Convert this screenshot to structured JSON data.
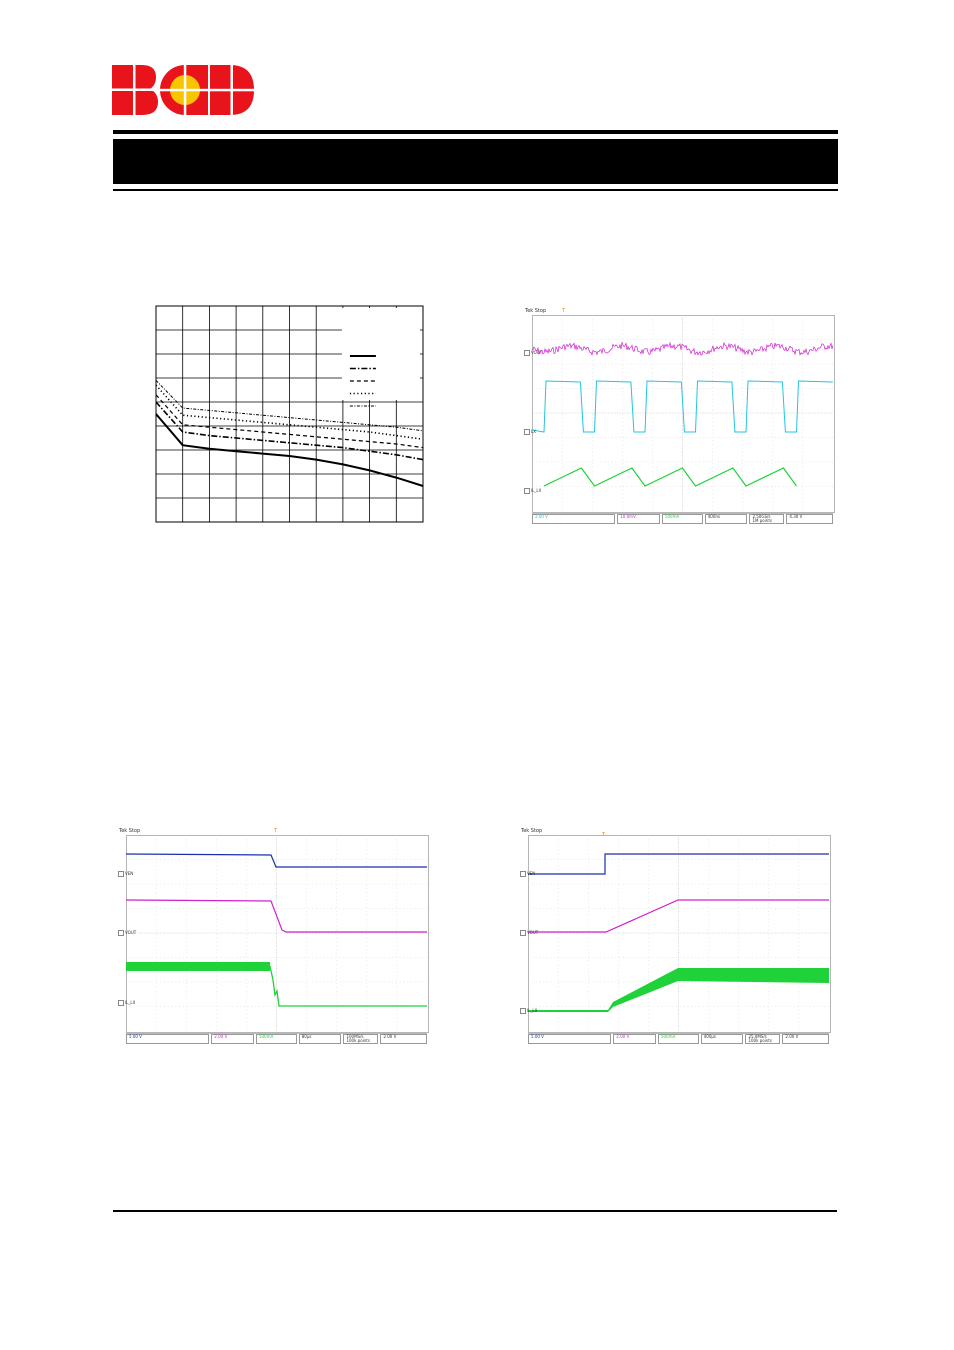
{
  "logo": {
    "text": "BCD",
    "colors": {
      "letters": "#e8131b",
      "dot": "#f9c300"
    }
  },
  "header": {
    "title": ""
  },
  "figure1": {
    "chart_data": {
      "type": "line",
      "title": "",
      "xlabel": "",
      "ylabel": "",
      "grid": true,
      "legend": "top-right",
      "x": [
        0,
        1,
        2,
        3,
        4,
        5,
        6,
        7,
        8,
        9,
        10
      ],
      "ylim": [
        0,
        9
      ],
      "series": [
        {
          "style": "solid",
          "values": [
            4.5,
            3.2,
            3.05,
            2.95,
            2.85,
            2.75,
            2.6,
            2.4,
            2.15,
            1.85,
            1.5
          ]
        },
        {
          "style": "dash-dot",
          "values": [
            5.0,
            3.75,
            3.6,
            3.5,
            3.4,
            3.3,
            3.2,
            3.1,
            2.95,
            2.8,
            2.6
          ]
        },
        {
          "style": "dashed",
          "values": [
            5.3,
            4.05,
            3.95,
            3.85,
            3.75,
            3.65,
            3.55,
            3.45,
            3.35,
            3.25,
            3.1
          ]
        },
        {
          "style": "dotted",
          "values": [
            5.7,
            4.45,
            4.35,
            4.25,
            4.15,
            4.05,
            3.95,
            3.85,
            3.75,
            3.6,
            3.45
          ]
        },
        {
          "style": "dash-dot-fine",
          "values": [
            5.9,
            4.75,
            4.65,
            4.55,
            4.45,
            4.35,
            4.25,
            4.15,
            4.05,
            3.95,
            3.8
          ]
        }
      ]
    }
  },
  "scope1": {
    "brand": "Tek Stop",
    "channels": [
      {
        "label": "VOUT",
        "color": "#d020d0"
      },
      {
        "label": "LX",
        "color": "#22c6e0"
      },
      {
        "label": "IL_LX",
        "color": "#1fd23a"
      }
    ],
    "status": [
      "2.00 V",
      "10.0mV",
      "500mA",
      "400ns",
      "2.50GS/s\n1M points",
      "4.30 V"
    ]
  },
  "scope2": {
    "brand": "Tek Stop",
    "channels": [
      {
        "label": "VEN",
        "color": "#1a2fb0"
      },
      {
        "label": "VOUT",
        "color": "#d020d0"
      },
      {
        "label": "IL_LX",
        "color": "#1fd23a"
      }
    ],
    "status": [
      "5.00 V",
      "2.00 V",
      "500mA",
      "80μs",
      "100MS/s\n100k points",
      "2.00 V"
    ]
  },
  "scope3": {
    "brand": "Tek Stop",
    "channels": [
      {
        "label": "VEN",
        "color": "#1a2fb0"
      },
      {
        "label": "VOUT",
        "color": "#d020d0"
      },
      {
        "label": "IL_LX",
        "color": "#1fd23a"
      }
    ],
    "status": [
      "5.00 V",
      "2.00 V",
      "500mA",
      "400μs",
      "25.0MS/s\n100k points",
      "2.00 V"
    ]
  }
}
